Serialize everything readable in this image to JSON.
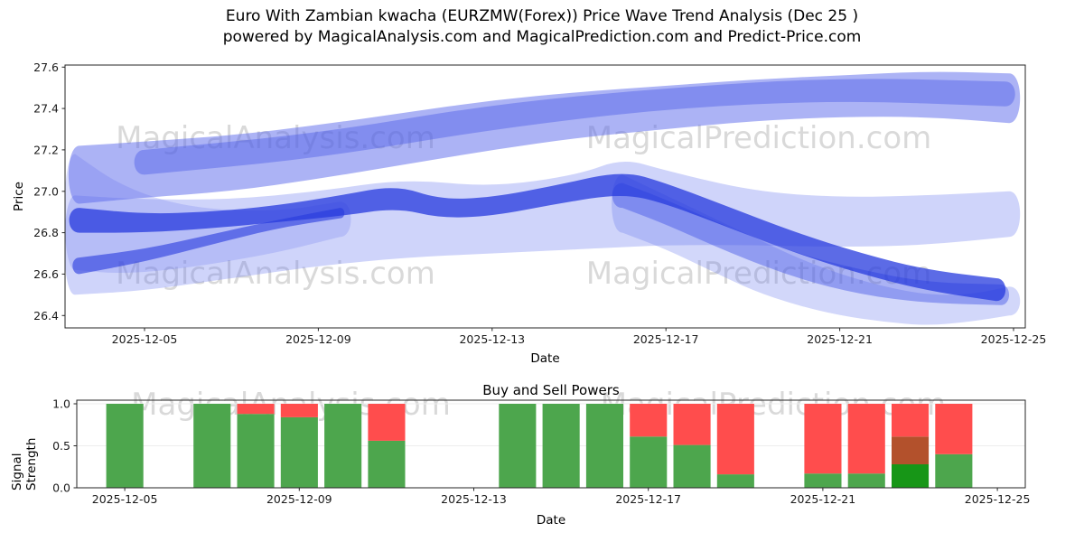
{
  "title": {
    "line1": "Euro With Zambian kwacha (EURZMW(Forex)) Price Wave Trend Analysis (Dec 25 )",
    "line2": "powered by MagicalAnalysis.com and MagicalPrediction.com and Predict-Price.com"
  },
  "watermark": {
    "left": "MagicalAnalysis.com",
    "right": "MagicalPrediction.com"
  },
  "chart_data": [
    {
      "type": "area",
      "title": "",
      "xlabel": "Date",
      "ylabel": "Price",
      "ylim": [
        26.34,
        27.61
      ],
      "x_unit": "day-of-month (2025-12)",
      "x_ticks": [
        "2025-12-05",
        "2025-12-09",
        "2025-12-13",
        "2025-12-17",
        "2025-12-21",
        "2025-12-25"
      ],
      "y_ticks": [
        "26.4",
        "26.6",
        "26.8",
        "27.0",
        "27.2",
        "27.4",
        "27.6"
      ],
      "legend": "none",
      "grid": false,
      "bands": [
        {
          "name": "envelope-mid",
          "color": "#6b79ee",
          "opacity": 0.32,
          "days": [
            3.4,
            5,
            7,
            9,
            11,
            13,
            15,
            16,
            17,
            19,
            21,
            23,
            24.9
          ],
          "low": [
            26.5,
            26.52,
            26.58,
            26.64,
            26.68,
            26.7,
            26.72,
            26.73,
            26.74,
            26.74,
            26.73,
            26.74,
            26.78
          ],
          "high": [
            26.98,
            26.96,
            26.96,
            27.0,
            27.06,
            27.02,
            27.08,
            27.16,
            27.1,
            27.0,
            26.97,
            26.98,
            27.0
          ]
        },
        {
          "name": "left-wedge",
          "color": "#6b79ee",
          "opacity": 0.25,
          "days": [
            3.4,
            4.5,
            6,
            8,
            9.5
          ],
          "low": [
            26.62,
            26.6,
            26.63,
            26.7,
            26.78
          ],
          "high": [
            27.18,
            27.02,
            26.92,
            26.9,
            26.95
          ]
        },
        {
          "name": "descend-fan",
          "color": "#6b79ee",
          "opacity": 0.3,
          "days": [
            16,
            17,
            18,
            19,
            20,
            21,
            22,
            23,
            24,
            24.9
          ],
          "low": [
            26.8,
            26.72,
            26.62,
            26.52,
            26.45,
            26.4,
            26.37,
            26.35,
            26.37,
            26.4
          ],
          "high": [
            27.08,
            26.98,
            26.88,
            26.78,
            26.68,
            26.6,
            26.54,
            26.5,
            26.5,
            26.54
          ]
        },
        {
          "name": "upper-band",
          "color": "#5a68ec",
          "opacity": 0.5,
          "days": [
            3.5,
            5,
            7,
            9,
            11,
            13,
            15,
            17,
            19,
            21,
            23,
            24.9
          ],
          "low": [
            26.94,
            26.97,
            27.0,
            27.06,
            27.13,
            27.2,
            27.26,
            27.3,
            27.34,
            27.36,
            27.36,
            27.33
          ],
          "high": [
            27.22,
            27.24,
            27.27,
            27.32,
            27.38,
            27.44,
            27.48,
            27.51,
            27.54,
            27.56,
            27.58,
            27.57
          ]
        },
        {
          "name": "upper-core",
          "color": "#4355e6",
          "opacity": 0.4,
          "days": [
            5,
            9,
            13,
            17,
            21,
            24.8
          ],
          "low": [
            27.08,
            27.16,
            27.3,
            27.4,
            27.44,
            27.41
          ],
          "high": [
            27.2,
            27.28,
            27.42,
            27.5,
            27.55,
            27.53
          ]
        },
        {
          "name": "descend-core",
          "color": "#4355e6",
          "opacity": 0.45,
          "days": [
            16,
            17,
            18.5,
            20,
            21.5,
            23,
            24.7
          ],
          "low": [
            26.92,
            26.84,
            26.7,
            26.58,
            26.5,
            26.46,
            26.45
          ],
          "high": [
            27.04,
            26.96,
            26.82,
            26.7,
            26.62,
            26.56,
            26.55
          ]
        },
        {
          "name": "lower-strand",
          "color": "#2639dd",
          "opacity": 0.6,
          "days": [
            3.5,
            5,
            6.5,
            8,
            9.5
          ],
          "low": [
            26.6,
            26.66,
            26.74,
            26.82,
            26.87
          ],
          "high": [
            26.68,
            26.72,
            26.79,
            26.86,
            26.92
          ]
        },
        {
          "name": "main-core",
          "color": "#2639dd",
          "opacity": 0.75,
          "days": [
            3.5,
            5,
            6.5,
            8,
            9.5,
            10.8,
            11.8,
            13,
            14.5,
            16,
            17,
            18.5,
            20,
            21.5,
            23,
            24.6
          ],
          "low": [
            26.8,
            26.8,
            26.82,
            26.85,
            26.88,
            26.92,
            26.87,
            26.88,
            26.94,
            26.99,
            26.94,
            26.82,
            26.7,
            26.6,
            26.52,
            26.47
          ],
          "high": [
            26.92,
            26.89,
            26.9,
            26.93,
            26.98,
            27.03,
            26.96,
            26.97,
            27.03,
            27.1,
            27.04,
            26.92,
            26.8,
            26.7,
            26.62,
            26.58
          ]
        }
      ]
    },
    {
      "type": "bar",
      "title": "Buy and Sell Powers",
      "xlabel": "Date",
      "ylabel": "Signal Strength",
      "ylim": [
        0,
        1.043
      ],
      "x_ticks": [
        "2025-12-05",
        "2025-12-09",
        "2025-12-13",
        "2025-12-17",
        "2025-12-21",
        "2025-12-25"
      ],
      "y_ticks": [
        "0.0",
        "0.5",
        "1.0"
      ],
      "grid": true,
      "colors": {
        "buy": "#4da64d",
        "sell": "#ff4d4d",
        "buy_strong": "#179617",
        "overlap": "#b3512c"
      },
      "bars": [
        {
          "date": "2025-12-05",
          "segments": [
            {
              "color": "buy",
              "value": 1.0
            }
          ]
        },
        {
          "date": "2025-12-07",
          "segments": [
            {
              "color": "buy",
              "value": 1.0
            }
          ]
        },
        {
          "date": "2025-12-08",
          "segments": [
            {
              "color": "buy",
              "value": 0.88
            },
            {
              "color": "sell",
              "value": 0.12
            }
          ]
        },
        {
          "date": "2025-12-09",
          "segments": [
            {
              "color": "buy",
              "value": 0.84
            },
            {
              "color": "sell",
              "value": 0.16
            }
          ]
        },
        {
          "date": "2025-12-10",
          "segments": [
            {
              "color": "buy",
              "value": 1.0
            }
          ]
        },
        {
          "date": "2025-12-11",
          "segments": [
            {
              "color": "buy",
              "value": 0.56
            },
            {
              "color": "sell",
              "value": 0.44
            }
          ]
        },
        {
          "date": "2025-12-14",
          "segments": [
            {
              "color": "buy",
              "value": 1.0
            }
          ]
        },
        {
          "date": "2025-12-15",
          "segments": [
            {
              "color": "buy",
              "value": 1.0
            }
          ]
        },
        {
          "date": "2025-12-16",
          "segments": [
            {
              "color": "buy",
              "value": 1.0
            }
          ]
        },
        {
          "date": "2025-12-17",
          "segments": [
            {
              "color": "buy",
              "value": 0.61
            },
            {
              "color": "sell",
              "value": 0.39
            }
          ]
        },
        {
          "date": "2025-12-18",
          "segments": [
            {
              "color": "buy",
              "value": 0.51
            },
            {
              "color": "sell",
              "value": 0.49
            }
          ]
        },
        {
          "date": "2025-12-19",
          "segments": [
            {
              "color": "buy",
              "value": 0.16
            },
            {
              "color": "sell",
              "value": 0.84
            }
          ]
        },
        {
          "date": "2025-12-21",
          "segments": [
            {
              "color": "buy",
              "value": 0.17
            },
            {
              "color": "sell",
              "value": 0.83
            }
          ]
        },
        {
          "date": "2025-12-22",
          "segments": [
            {
              "color": "buy",
              "value": 0.17
            },
            {
              "color": "sell",
              "value": 0.83
            }
          ]
        },
        {
          "date": "2025-12-23",
          "segments": [
            {
              "color": "buy_strong",
              "value": 0.28
            },
            {
              "color": "overlap",
              "value": 0.33
            },
            {
              "color": "sell",
              "value": 0.39
            }
          ]
        },
        {
          "date": "2025-12-24",
          "segments": [
            {
              "color": "buy",
              "value": 0.4
            },
            {
              "color": "sell",
              "value": 0.6
            }
          ]
        }
      ]
    }
  ]
}
